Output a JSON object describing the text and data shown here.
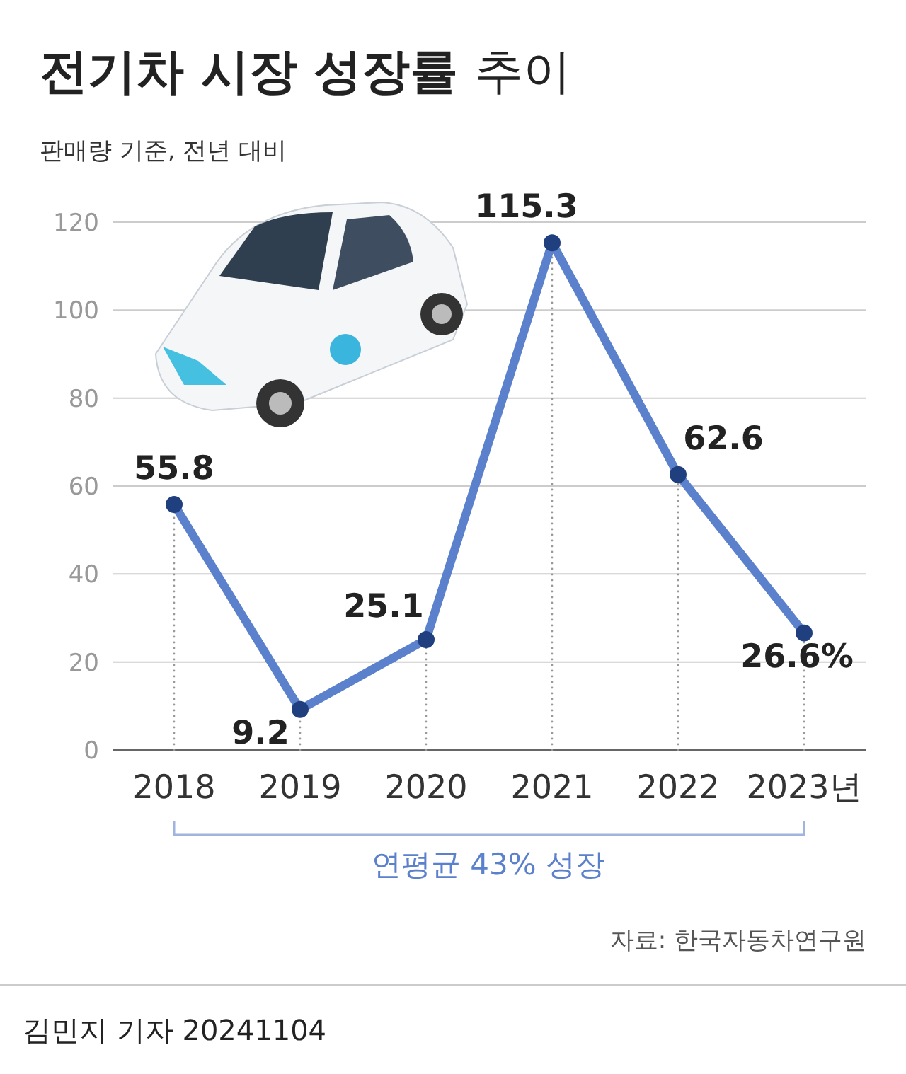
{
  "chart_data": {
    "type": "line",
    "title": "전기차 시장 성장률 추이",
    "subtitle": "판매량 기준, 전년 대비",
    "categories": [
      "2018",
      "2019",
      "2020",
      "2021",
      "2022",
      "2023년"
    ],
    "series": [
      {
        "color": "#5b80cc",
        "values": [
          55.8,
          9.2,
          25.1,
          115.3,
          62.6,
          26.6
        ],
        "value_labels": [
          "55.8",
          "9.2",
          "25.1",
          "115.3",
          "62.6",
          "26.6%"
        ]
      }
    ],
    "ylim": [
      0,
      120
    ],
    "yticks": [
      0,
      20,
      40,
      60,
      80,
      100,
      120
    ],
    "grid": "y",
    "marker": "circle",
    "line_style": "solid",
    "annotations": [
      "연평균 43% 성장",
      "자료: 한국자동차연구원",
      "김민지 기자 20241104"
    ]
  }
}
